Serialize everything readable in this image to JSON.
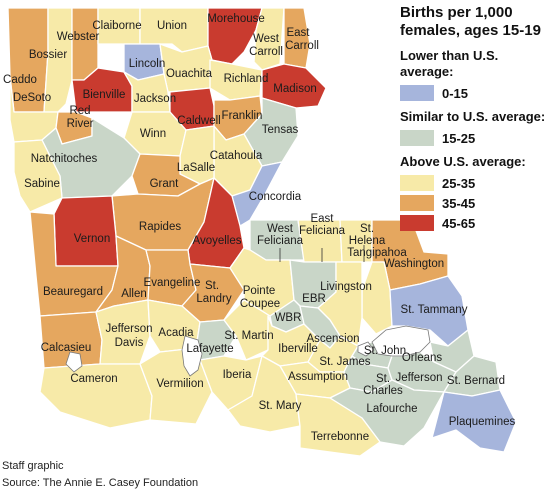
{
  "legend": {
    "title": "Births per 1,000 females, ages 15-19",
    "groups": [
      {
        "label": "Lower than U.S. average:",
        "items": [
          {
            "range": "0-15",
            "color": "#a6b5dc"
          }
        ]
      },
      {
        "label": "Similar to U.S. average:",
        "items": [
          {
            "range": "15-25",
            "color": "#c9d6c8"
          }
        ]
      },
      {
        "label": "Above U.S. average:",
        "items": [
          {
            "range": "25-35",
            "color": "#f7eaa8"
          },
          {
            "range": "35-45",
            "color": "#e5a75f"
          },
          {
            "range": "45-65",
            "color": "#c93b2f"
          }
        ]
      }
    ]
  },
  "credit": "Staff graphic",
  "source": "Source: The Annie E. Casey Foundation",
  "parishes": [
    {
      "name": "Caddo",
      "category": "35-45"
    },
    {
      "name": "Bossier",
      "category": "25-35"
    },
    {
      "name": "Webster",
      "category": "35-45"
    },
    {
      "name": "Claiborne",
      "category": "25-35"
    },
    {
      "name": "Union",
      "category": "25-35"
    },
    {
      "name": "Morehouse",
      "category": "45-65"
    },
    {
      "name": "West Carroll",
      "category": "25-35"
    },
    {
      "name": "East Carroll",
      "category": "35-45"
    },
    {
      "name": "Lincoln",
      "category": "0-15"
    },
    {
      "name": "Ouachita",
      "category": "25-35"
    },
    {
      "name": "Richland",
      "category": "25-35"
    },
    {
      "name": "Madison",
      "category": "45-65"
    },
    {
      "name": "Bienville",
      "category": "45-65"
    },
    {
      "name": "Jackson",
      "category": "25-35"
    },
    {
      "name": "Caldwell",
      "category": "45-65"
    },
    {
      "name": "Franklin",
      "category": "35-45"
    },
    {
      "name": "Tensas",
      "category": "15-25"
    },
    {
      "name": "DeSoto",
      "category": "25-35"
    },
    {
      "name": "Red River",
      "category": "35-45"
    },
    {
      "name": "Winn",
      "category": "25-35"
    },
    {
      "name": "Natchitoches",
      "category": "15-25"
    },
    {
      "name": "Catahoula",
      "category": "25-35"
    },
    {
      "name": "LaSalle",
      "category": "25-35"
    },
    {
      "name": "Concordia",
      "category": "0-15"
    },
    {
      "name": "Sabine",
      "category": "25-35"
    },
    {
      "name": "Grant",
      "category": "35-45"
    },
    {
      "name": "Rapides",
      "category": "35-45"
    },
    {
      "name": "Avoyelles",
      "category": "45-65"
    },
    {
      "name": "Vernon",
      "category": "45-65"
    },
    {
      "name": "West Feliciana",
      "category": "15-25"
    },
    {
      "name": "East Feliciana",
      "category": "25-35"
    },
    {
      "name": "St. Helena",
      "category": "25-35"
    },
    {
      "name": "Washington",
      "category": "35-45"
    },
    {
      "name": "Tangipahoa",
      "category": "25-35"
    },
    {
      "name": "St. Tammany",
      "category": "0-15"
    },
    {
      "name": "Beauregard",
      "category": "35-45"
    },
    {
      "name": "Allen",
      "category": "35-45"
    },
    {
      "name": "Evangeline",
      "category": "35-45"
    },
    {
      "name": "St. Landry",
      "category": "35-45"
    },
    {
      "name": "Pointe Coupee",
      "category": "25-35"
    },
    {
      "name": "EBR",
      "category": "15-25"
    },
    {
      "name": "WBR",
      "category": "15-25"
    },
    {
      "name": "Livingston",
      "category": "25-35"
    },
    {
      "name": "Calcasieu",
      "category": "35-45"
    },
    {
      "name": "Jefferson Davis",
      "category": "25-35"
    },
    {
      "name": "Acadia",
      "category": "25-35"
    },
    {
      "name": "Lafayette",
      "category": "15-25"
    },
    {
      "name": "St. Martin",
      "category": "25-35"
    },
    {
      "name": "Iberville",
      "category": "25-35"
    },
    {
      "name": "Ascension",
      "category": "15-25"
    },
    {
      "name": "St. John",
      "category": "15-25"
    },
    {
      "name": "Orleans",
      "category": "15-25"
    },
    {
      "name": "St. James",
      "category": "25-35"
    },
    {
      "name": "St. Charles",
      "category": "15-25"
    },
    {
      "name": "Assumption",
      "category": "25-35"
    },
    {
      "name": "Jefferson",
      "category": "15-25"
    },
    {
      "name": "St. Bernard",
      "category": "15-25"
    },
    {
      "name": "Cameron",
      "category": "25-35"
    },
    {
      "name": "Vermilion",
      "category": "25-35"
    },
    {
      "name": "Iberia",
      "category": "25-35"
    },
    {
      "name": "Lafourche",
      "category": "15-25"
    },
    {
      "name": "St. Mary",
      "category": "25-35"
    },
    {
      "name": "Plaquemines",
      "category": "0-15"
    },
    {
      "name": "Terrebonne",
      "category": "25-35"
    }
  ]
}
